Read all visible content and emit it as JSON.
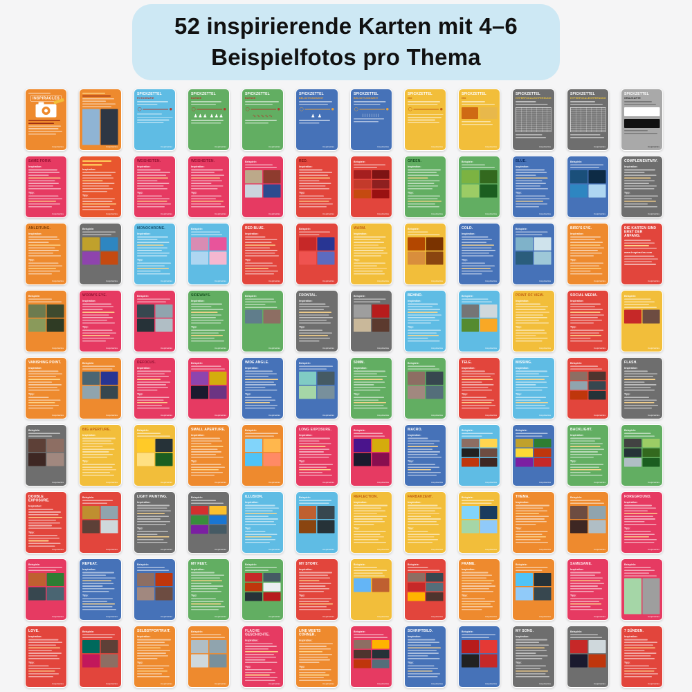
{
  "banner": {
    "line1": "52 inspirierende Karten mit 4–6",
    "line2": "Beispielfotos pro Thema",
    "bg": "#CDE8F4",
    "text_color": "#111111"
  },
  "labels": {
    "spickzettel": "SPICKZETTEL",
    "inspiration": "Inspiration:",
    "tipp": "Tipp:",
    "beispiele": "Beispiele:",
    "brand": "inspiracles",
    "logo": "INSPIRACLES"
  },
  "colors": {
    "page_bg": "#F5F5F6",
    "orange": "#EE8A2E",
    "redorange": "#E8562E",
    "red": "#E2453C",
    "pink": "#E63A62",
    "yellow": "#F2BE3A",
    "green": "#62AE62",
    "lightblue": "#5FBCE4",
    "blue": "#4672B8",
    "gray": "#6E6E6E",
    "lightgray": "#A9A9A9"
  },
  "title_colors": {
    "orange": "#FFFFFF",
    "redorange": "#FFFFFF",
    "red": "#FFFFFF",
    "pink": "#FFE3E8",
    "yellow": "#C05E10",
    "green": "#FFFFFF",
    "lightblue": "#FFFFFF",
    "blue": "#FFFFFF",
    "gray": "#FFFFFF",
    "lightgray": "#333333"
  },
  "cards": [
    {
      "t": "cover",
      "c": "orange"
    },
    {
      "t": "photos",
      "c": "orange",
      "tall": true,
      "nolabel": true,
      "ph": [
        "#8FB4D4",
        "#2E3744"
      ]
    },
    {
      "t": "cheat",
      "c": "lightblue",
      "sub": "FOTOGRAFIE",
      "sc": "#B03A2E",
      "d": "focus"
    },
    {
      "t": "cheat",
      "c": "green",
      "sub": "BLENDE",
      "sc": "#B03A2E",
      "d": "people"
    },
    {
      "t": "cheat",
      "c": "green",
      "sub": "BLENDE",
      "sc": "#B03A2E",
      "d": "wave"
    },
    {
      "t": "cheat",
      "c": "blue",
      "sub": "BELICHTUNGSZEIT",
      "sc": "#E8A33D",
      "d": "run"
    },
    {
      "t": "cheat",
      "c": "blue",
      "sub": "BELICHTUNGSZEIT",
      "sc": "#E8A33D",
      "d": "ticks"
    },
    {
      "t": "cheat",
      "c": "yellow",
      "sub": "ISO",
      "sc": "#C05E10",
      "d": "iso"
    },
    {
      "t": "cheat",
      "c": "yellow",
      "sub": "ISO",
      "sc": "#C05E10",
      "d": "grain"
    },
    {
      "t": "cheat",
      "c": "gray",
      "sub": "HYPERFOKALENTFERNUNG",
      "sc": "#E8C13D",
      "d": "tbl"
    },
    {
      "t": "cheat",
      "c": "gray",
      "sub": "HYPERFOKALENTFERNUNG",
      "sc": "#E8C13D",
      "d": "tbl"
    },
    {
      "t": "cheat",
      "c": "lightgray",
      "sub": "GRAUKARTE",
      "sc": "#2B2B2B",
      "d": "swatch"
    },
    {
      "t": "text",
      "c": "pink",
      "title": "SAME FORM.",
      "tc": "#8F1030"
    },
    {
      "t": "text",
      "c": "redorange",
      "title": null
    },
    {
      "t": "text",
      "c": "pink",
      "title": "WEISHEITEN.",
      "tc": "#8F1030"
    },
    {
      "t": "text",
      "c": "pink",
      "title": "WEISHEITEN.",
      "tc": "#8F1030"
    },
    {
      "t": "photos",
      "c": "pink",
      "ph": [
        "#BCA98A",
        "#8E3B2E",
        "#CBD5DE",
        "#2C4B8F"
      ]
    },
    {
      "t": "text",
      "c": "red",
      "title": "RED.",
      "tc": "#7D1512"
    },
    {
      "t": "photos",
      "c": "red",
      "ph": [
        "#A51F1F",
        "#7E1414",
        "#C33A2B",
        "#8E2020",
        "#C54A10",
        "#991111"
      ]
    },
    {
      "t": "text",
      "c": "green",
      "title": "GREEN.",
      "tc": "#14501D"
    },
    {
      "t": "photos",
      "c": "green",
      "ph": [
        "#7CB342",
        "#33691E",
        "#9CCC65",
        "#1B5E20"
      ]
    },
    {
      "t": "text",
      "c": "blue",
      "title": "BLUE.",
      "tc": "#0A2D66"
    },
    {
      "t": "photos",
      "c": "blue",
      "ph": [
        "#1A4F7A",
        "#0D2B45",
        "#2E86C1",
        "#AED6F1"
      ]
    },
    {
      "t": "text",
      "c": "gray",
      "title": "COMPLEMENTARY."
    },
    {
      "t": "text",
      "c": "orange",
      "title": "ANLEITUNG.",
      "tc": "#7A3A00"
    },
    {
      "t": "photos",
      "c": "gray",
      "ph": [
        "#C0A12C",
        "#2E86C1",
        "#8E44AD",
        "#C54A10"
      ]
    },
    {
      "t": "text",
      "c": "lightblue",
      "title": "MONOCHROME.",
      "tc": "#14506E"
    },
    {
      "t": "photos",
      "c": "lightblue",
      "ph": [
        "#D98CB3",
        "#E8549B",
        "#AED6F1",
        "#F5B7D0"
      ]
    },
    {
      "t": "text",
      "c": "red",
      "title": "RED BLUE."
    },
    {
      "t": "photos",
      "c": "red",
      "ph": [
        "#C62828",
        "#283593",
        "#EF5350",
        "#5C6BC0"
      ]
    },
    {
      "t": "text",
      "c": "yellow",
      "title": "WARM."
    },
    {
      "t": "photos",
      "c": "yellow",
      "ph": [
        "#B34700",
        "#7A3300",
        "#D98E3C",
        "#8A4510"
      ]
    },
    {
      "t": "text",
      "c": "blue",
      "title": "COLD."
    },
    {
      "t": "photos",
      "c": "blue",
      "ph": [
        "#7FB2C9",
        "#CFE3EC",
        "#2A5D7C",
        "#9EC8D8"
      ]
    },
    {
      "t": "text",
      "c": "orange",
      "title": "BIRD'S EYE."
    },
    {
      "t": "info",
      "c": "red",
      "title": "DIE KARTEN SIND ERST DER ANFANG.",
      "link": "www.inspiracles.com"
    },
    {
      "t": "photos",
      "c": "orange",
      "ph": [
        "#6D7B4F",
        "#3E4A2E",
        "#8A9A5B",
        "#2F3B24"
      ]
    },
    {
      "t": "text",
      "c": "pink",
      "title": "WORM'S EYE.",
      "tc": "#8F1030"
    },
    {
      "t": "photos",
      "c": "pink",
      "ph": [
        "#37474F",
        "#90A4AE",
        "#263238",
        "#B0BEC5"
      ]
    },
    {
      "t": "text",
      "c": "green",
      "title": "SIDEWAYS.",
      "tc": "#14501D"
    },
    {
      "t": "photos",
      "c": "green",
      "ph": [
        "#607D8B",
        "#8D6E63"
      ]
    },
    {
      "t": "text",
      "c": "gray",
      "title": "FRONTAL."
    },
    {
      "t": "photos",
      "c": "gray",
      "ph": [
        "#9E9E9E",
        "#B71C1C",
        "#C9B89A",
        "#5C3A2E"
      ]
    },
    {
      "t": "text",
      "c": "lightblue",
      "title": "BEHIND."
    },
    {
      "t": "photos",
      "c": "lightblue",
      "ph": [
        "#757575",
        "#CFD8DC",
        "#558B2F",
        "#F9A825"
      ]
    },
    {
      "t": "text",
      "c": "yellow",
      "title": "POINT OF VIEW."
    },
    {
      "t": "text",
      "c": "red",
      "title": "SOCIAL MEDIA."
    },
    {
      "t": "photos",
      "c": "yellow",
      "ph": [
        "#C62828",
        "#6D4C41"
      ]
    },
    {
      "t": "text",
      "c": "orange",
      "title": "VANISHING POINT."
    },
    {
      "t": "photos",
      "c": "orange",
      "ph": [
        "#4A6572",
        "#283593",
        "#90A4AE",
        "#37474F"
      ]
    },
    {
      "t": "text",
      "c": "pink",
      "title": "DEFOCUS.",
      "tc": "#8F1030"
    },
    {
      "t": "photos",
      "c": "pink",
      "ph": [
        "#8E44AD",
        "#D4AC0D",
        "#1A1A2E",
        "#6C3483"
      ]
    },
    {
      "t": "text",
      "c": "blue",
      "title": "WIDE ANGLE."
    },
    {
      "t": "photos",
      "c": "blue",
      "ph": [
        "#80CBC4",
        "#455A64",
        "#A5D6A7",
        "#78909C"
      ]
    },
    {
      "t": "text",
      "c": "green",
      "title": "50MM."
    },
    {
      "t": "photos",
      "c": "green",
      "ph": [
        "#8D6E63",
        "#37474F",
        "#A1887F",
        "#546E7A"
      ]
    },
    {
      "t": "text",
      "c": "red",
      "title": "TELE."
    },
    {
      "t": "text",
      "c": "lightblue",
      "title": "MISSING."
    },
    {
      "t": "photos",
      "c": "red",
      "ph": [
        "#8D6E63",
        "#4E342E",
        "#90A4AE",
        "#37474F",
        "#BF360C",
        "#263238"
      ]
    },
    {
      "t": "text",
      "c": "gray",
      "title": "FLASH."
    },
    {
      "t": "photos",
      "c": "gray",
      "ph": [
        "#5D4037",
        "#8D6E63",
        "#3E2723",
        "#A1887F"
      ]
    },
    {
      "t": "text",
      "c": "yellow",
      "title": "BIG APERTURE."
    },
    {
      "t": "photos",
      "c": "yellow",
      "ph": [
        "#FFCA28",
        "#263238",
        "#FFE082",
        "#1B5E20"
      ]
    },
    {
      "t": "text",
      "c": "orange",
      "title": "SMALL APERTURE."
    },
    {
      "t": "photos",
      "c": "orange",
      "ph": [
        "#81D4FA",
        "#FFB74D",
        "#4FC3F7",
        "#FF8A65"
      ]
    },
    {
      "t": "text",
      "c": "pink",
      "title": "LONG EXPOSURE."
    },
    {
      "t": "photos",
      "c": "pink",
      "ph": [
        "#4A148C",
        "#D4AC0D",
        "#1A1A2E",
        "#880E4F"
      ]
    },
    {
      "t": "text",
      "c": "blue",
      "title": "MACRO."
    },
    {
      "t": "photos",
      "c": "lightblue",
      "ph": [
        "#8D6E63",
        "#FFD54F",
        "#212121",
        "#6D4C41",
        "#BF360C",
        "#3E2723"
      ]
    },
    {
      "t": "photos",
      "c": "blue",
      "ph": [
        "#C0A12C",
        "#2E7D32",
        "#FDD835",
        "#BF360C",
        "#7B1FA2",
        "#C62828"
      ]
    },
    {
      "t": "text",
      "c": "green",
      "title": "BACKLIGHT."
    },
    {
      "t": "photos",
      "c": "green",
      "ph": [
        "#424242",
        "#9CCC65",
        "#263238",
        "#33691E",
        "#B0BEC5",
        "#1B5E20"
      ]
    },
    {
      "t": "text",
      "c": "red",
      "title": "DOUBLE EXPOSURE."
    },
    {
      "t": "photos",
      "c": "red",
      "ph": [
        "#BF8F30",
        "#90A4AE",
        "#5D4037",
        "#CFD8DC"
      ]
    },
    {
      "t": "text",
      "c": "gray",
      "title": "LIGHT PAINTING."
    },
    {
      "t": "photos",
      "c": "gray",
      "ph": [
        "#D32F2F",
        "#FBC02D",
        "#388E3C",
        "#1976D2",
        "#7B1FA2",
        "#455A64"
      ]
    },
    {
      "t": "text",
      "c": "lightblue",
      "title": "ILLUSION."
    },
    {
      "t": "photos",
      "c": "lightblue",
      "ph": [
        "#BF6030",
        "#37474F",
        "#8A4510",
        "#263238"
      ]
    },
    {
      "t": "text",
      "c": "yellow",
      "title": "REFLECTION."
    },
    {
      "t": "text",
      "c": "yellow",
      "title": "FARBAKZENT."
    },
    {
      "t": "photos",
      "c": "yellow",
      "ph": [
        "#81D4FA",
        "#1A3C5E",
        "#A5D6A7",
        "#90CAF9"
      ]
    },
    {
      "t": "text",
      "c": "orange",
      "title": "THEMA."
    },
    {
      "t": "photos",
      "c": "orange",
      "ph": [
        "#6D4C41",
        "#90A4AE",
        "#3E2723",
        "#B0BEC5"
      ]
    },
    {
      "t": "text",
      "c": "pink",
      "title": "FOREGROUND."
    },
    {
      "t": "photos",
      "c": "pink",
      "ph": [
        "#BF6030",
        "#2E7D32",
        "#37474F",
        "#4A6572"
      ]
    },
    {
      "t": "text",
      "c": "blue",
      "title": "REPEAT."
    },
    {
      "t": "photos",
      "c": "blue",
      "ph": [
        "#8D6E63",
        "#BF360C",
        "#A1887F",
        "#6D4C41"
      ]
    },
    {
      "t": "text",
      "c": "green",
      "title": "MY FEET."
    },
    {
      "t": "photos",
      "c": "green",
      "ph": [
        "#C62828",
        "#455A64",
        "#BF360C",
        "#ECEFF1",
        "#263238",
        "#B71C1C"
      ]
    },
    {
      "t": "text",
      "c": "red",
      "title": "MY STORY."
    },
    {
      "t": "photos",
      "c": "yellow",
      "ph": [
        "#64B5F6",
        "#BF6030"
      ]
    },
    {
      "t": "photos",
      "c": "red",
      "ph": [
        "#8D6E63",
        "#37474F",
        "#C62828",
        "#546E7A",
        "#FFB300",
        "#4E342E"
      ]
    },
    {
      "t": "text",
      "c": "orange",
      "title": "FRAME."
    },
    {
      "t": "photos",
      "c": "orange",
      "ph": [
        "#4FC3F7",
        "#263238",
        "#90CAF9",
        "#37474F"
      ]
    },
    {
      "t": "text",
      "c": "pink",
      "title": "SAMESAME."
    },
    {
      "t": "photos",
      "c": "pink",
      "tall": true,
      "ph": [
        "#A5D6A7",
        "#9E9E9E"
      ]
    },
    {
      "t": "text",
      "c": "red",
      "title": "LOVE."
    },
    {
      "t": "photos",
      "c": "red",
      "ph": [
        "#00695C",
        "#5D4037",
        "#C2185B",
        "#8D6E63"
      ]
    },
    {
      "t": "text",
      "c": "orange",
      "title": "SELBSTPORTRAIT."
    },
    {
      "t": "photos",
      "c": "orange",
      "ph": [
        "#B0BEC5",
        "#90A4AE",
        "#CFD8DC",
        "#78909C"
      ]
    },
    {
      "t": "text",
      "c": "pink",
      "title": "FLACHE GESCHICHTE."
    },
    {
      "t": "text",
      "c": "orange",
      "title": "LINE MEETS CORNER."
    },
    {
      "t": "photos",
      "c": "pink",
      "ph": [
        "#8D6E63",
        "#FFB300",
        "#4E342E",
        "#263238",
        "#BF360C",
        "#546E7A"
      ]
    },
    {
      "t": "text",
      "c": "blue",
      "title": "SCHRIFTBILD."
    },
    {
      "t": "photos",
      "c": "blue",
      "ph": [
        "#B71C1C",
        "#E53935",
        "#212121",
        "#C62828"
      ]
    },
    {
      "t": "text",
      "c": "gray",
      "title": "MY SONG."
    },
    {
      "t": "photos",
      "c": "gray",
      "ph": [
        "#C62828",
        "#CFD8DC",
        "#1A1A2E",
        "#BF360C"
      ]
    },
    {
      "t": "text",
      "c": "red",
      "title": "7 SÜNDEN."
    }
  ]
}
